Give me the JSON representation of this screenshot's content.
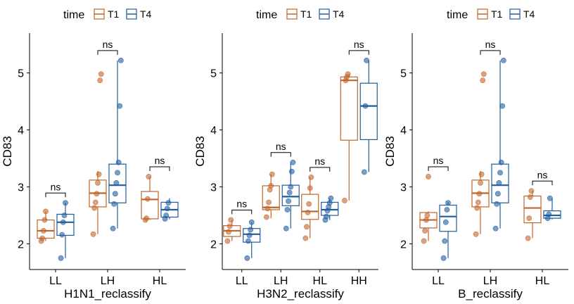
{
  "legend": {
    "title": "time",
    "entries": [
      {
        "label": "T1",
        "color": "#C0652A"
      },
      {
        "label": "T4",
        "color": "#1F5C9E"
      }
    ]
  },
  "significance_label": "ns",
  "chart_data": [
    {
      "type": "boxplot",
      "xlabel": "H1N1_reclassify",
      "ylabel": "CD83",
      "ylim": [
        1.55,
        5.7
      ],
      "yticks": [
        2,
        3,
        4,
        5
      ],
      "categories": [
        "LL",
        "LH",
        "HL"
      ],
      "series": [
        {
          "name": "T1",
          "boxes": [
            {
              "q1": 2.1,
              "median": 2.23,
              "q3": 2.42,
              "whisker_low": 2.05,
              "whisker_high": 2.57,
              "points": [
                2.05,
                2.1,
                2.23,
                2.42,
                2.57
              ]
            },
            {
              "q1": 2.65,
              "median": 2.89,
              "q3": 3.12,
              "whisker_low": 2.17,
              "whisker_high": 3.28,
              "points": [
                2.17,
                2.63,
                2.73,
                2.88,
                3.07,
                3.22,
                4.87,
                4.98
              ]
            },
            {
              "q1": 2.44,
              "median": 2.78,
              "q3": 2.92,
              "whisker_low": 2.42,
              "whisker_high": 3.18,
              "points": [
                2.42,
                2.45,
                2.79,
                3.18
              ]
            }
          ]
        },
        {
          "name": "T4",
          "boxes": [
            {
              "q1": 2.15,
              "median": 2.38,
              "q3": 2.52,
              "whisker_low": 1.75,
              "whisker_high": 2.72,
              "points": [
                1.75,
                2.16,
                2.38,
                2.5,
                2.72
              ]
            },
            {
              "q1": 2.72,
              "median": 3.03,
              "q3": 3.4,
              "whisker_low": 2.27,
              "whisker_high": 5.22,
              "points": [
                2.27,
                2.7,
                2.88,
                3.07,
                3.25,
                3.43,
                4.42,
                5.22
              ]
            },
            {
              "q1": 2.47,
              "median": 2.6,
              "q3": 2.73,
              "whisker_low": 2.43,
              "whisker_high": 2.8,
              "points": [
                2.44,
                2.5,
                2.62,
                2.72
              ]
            }
          ]
        }
      ]
    },
    {
      "type": "boxplot",
      "xlabel": "H3N2_reclassify",
      "ylabel": "CD83",
      "ylim": [
        1.55,
        5.7
      ],
      "yticks": [
        2,
        3,
        4,
        5
      ],
      "categories": [
        "LL",
        "LH",
        "HL",
        "HH"
      ],
      "series": [
        {
          "name": "T1",
          "boxes": [
            {
              "q1": 2.13,
              "median": 2.23,
              "q3": 2.32,
              "whisker_low": 2.05,
              "whisker_high": 2.42,
              "points": [
                2.05,
                2.21,
                2.31,
                2.42
              ]
            },
            {
              "q1": 2.6,
              "median": 2.64,
              "q3": 3.02,
              "whisker_low": 2.45,
              "whisker_high": 3.22,
              "points": [
                2.47,
                2.62,
                2.73,
                2.95,
                3.02,
                3.22
              ]
            },
            {
              "q1": 2.43,
              "median": 2.57,
              "q3": 2.87,
              "whisker_low": 2.1,
              "whisker_high": 3.17,
              "points": [
                2.1,
                2.3,
                2.55,
                2.7,
                2.98,
                3.17
              ]
            },
            {
              "q1": 3.82,
              "median": 4.87,
              "q3": 4.93,
              "whisker_low": 2.76,
              "whisker_high": 4.98,
              "points": [
                2.76,
                4.87,
                4.93,
                4.98
              ]
            }
          ]
        },
        {
          "name": "T4",
          "boxes": [
            {
              "q1": 2.03,
              "median": 2.17,
              "q3": 2.27,
              "whisker_low": 1.75,
              "whisker_high": 2.38,
              "points": [
                1.75,
                2.05,
                2.15,
                2.25,
                2.38
              ]
            },
            {
              "q1": 2.67,
              "median": 2.83,
              "q3": 3.03,
              "whisker_low": 2.27,
              "whisker_high": 3.43,
              "points": [
                2.27,
                2.6,
                2.75,
                2.9,
                3.0,
                3.27,
                3.43
              ]
            },
            {
              "q1": 2.5,
              "median": 2.6,
              "q3": 2.73,
              "whisker_low": 2.42,
              "whisker_high": 2.8,
              "points": [
                2.42,
                2.48,
                2.58,
                2.65,
                2.72,
                2.8
              ]
            },
            {
              "q1": 3.83,
              "median": 4.42,
              "q3": 4.82,
              "whisker_low": 3.26,
              "whisker_high": 5.22,
              "points": [
                3.26,
                4.42,
                5.22
              ]
            }
          ]
        }
      ]
    },
    {
      "type": "boxplot",
      "xlabel": "B_reclassify",
      "ylabel": "CD83",
      "ylim": [
        1.55,
        5.7
      ],
      "yticks": [
        2,
        3,
        4,
        5
      ],
      "categories": [
        "LL",
        "LH",
        "HL"
      ],
      "series": [
        {
          "name": "T1",
          "boxes": [
            {
              "q1": 2.28,
              "median": 2.42,
              "q3": 2.55,
              "whisker_low": 2.05,
              "whisker_high": 2.57,
              "points": [
                2.05,
                2.23,
                2.42,
                2.5,
                3.18
              ]
            },
            {
              "q1": 2.65,
              "median": 2.89,
              "q3": 3.12,
              "whisker_low": 2.17,
              "whisker_high": 3.28,
              "points": [
                2.17,
                2.63,
                2.73,
                2.88,
                3.07,
                3.22,
                4.87,
                4.98
              ]
            },
            {
              "q1": 2.37,
              "median": 2.63,
              "q3": 2.84,
              "whisker_low": 2.1,
              "whisker_high": 2.93,
              "points": [
                2.1,
                2.45,
                2.82,
                2.93
              ]
            }
          ]
        },
        {
          "name": "T4",
          "boxes": [
            {
              "q1": 2.22,
              "median": 2.48,
              "q3": 2.68,
              "whisker_low": 1.75,
              "whisker_high": 2.73,
              "points": [
                1.75,
                2.05,
                2.38,
                2.6,
                2.72
              ]
            },
            {
              "q1": 2.72,
              "median": 3.03,
              "q3": 3.4,
              "whisker_low": 2.27,
              "whisker_high": 5.22,
              "points": [
                2.27,
                2.7,
                2.88,
                3.07,
                3.25,
                3.43,
                4.42,
                5.22
              ]
            },
            {
              "q1": 2.45,
              "median": 2.5,
              "q3": 2.58,
              "whisker_low": 2.43,
              "whisker_high": 2.8,
              "points": [
                2.45,
                2.52,
                2.8
              ]
            }
          ]
        }
      ]
    }
  ]
}
